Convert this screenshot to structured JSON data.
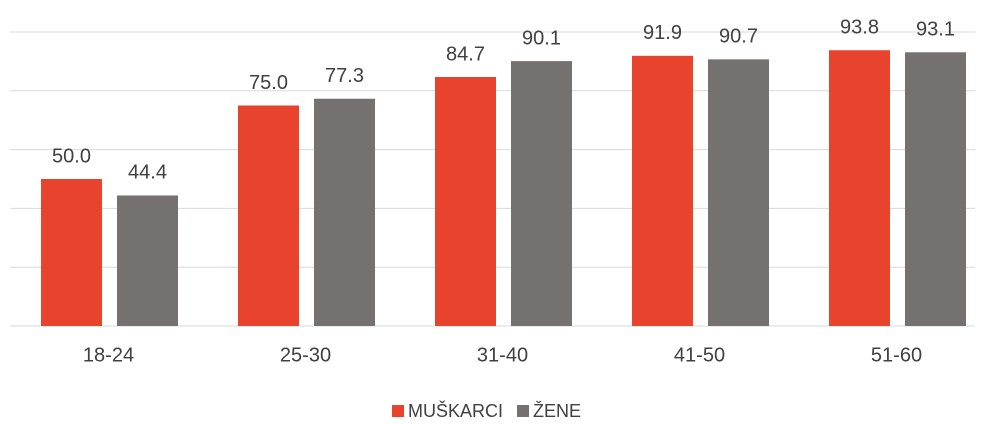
{
  "chart_data": {
    "type": "bar",
    "categories": [
      "18-24",
      "25-30",
      "31-40",
      "41-50",
      "51-60"
    ],
    "series": [
      {
        "name": "MUŠKARCI",
        "color": "#e8432d",
        "values": [
          50.0,
          75.0,
          84.7,
          91.9,
          93.8
        ],
        "value_labels": [
          "50.0",
          "75.0",
          "84.7",
          "91.9",
          "93.8"
        ]
      },
      {
        "name": "ŽENE",
        "color": "#767171",
        "values": [
          44.4,
          77.3,
          90.1,
          90.7,
          93.1
        ],
        "value_labels": [
          "44.4",
          "77.3",
          "90.1",
          "90.7",
          "93.1"
        ]
      }
    ],
    "ylim": [
      0,
      100
    ],
    "yticks": [
      0,
      20,
      40,
      60,
      80,
      100
    ],
    "grid": true,
    "legend": "bottom"
  }
}
